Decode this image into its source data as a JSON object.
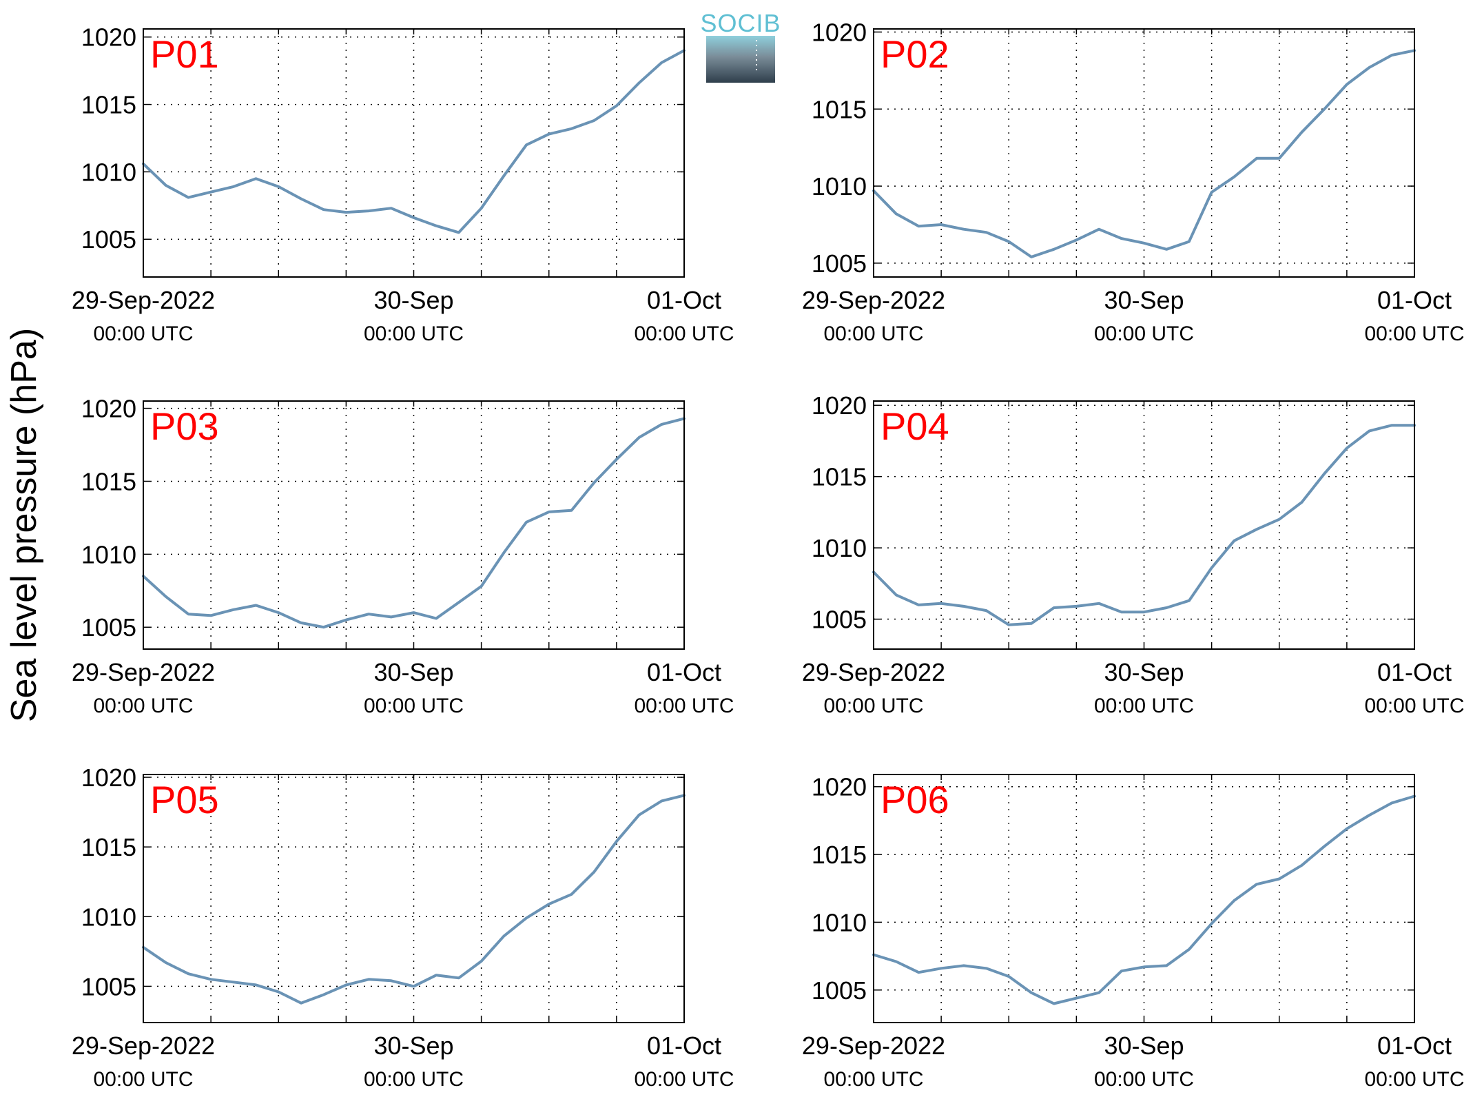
{
  "figure": {
    "ylabel": "Sea level pressure (hPa)",
    "logo_text": "SOCIB",
    "line_color": "#6a93b5",
    "station_label_color": "#ff0000"
  },
  "chart_data": [
    {
      "type": "line",
      "name": "P01",
      "ylim": [
        1002.2,
        1020.6
      ],
      "x": [
        0,
        2,
        4,
        6,
        8,
        10,
        12,
        14,
        16,
        18,
        20,
        22,
        24,
        26,
        28,
        30,
        32,
        34,
        36,
        38,
        40,
        42,
        44,
        46,
        48
      ],
      "y": [
        1010.6,
        1009.0,
        1008.1,
        1008.5,
        1008.9,
        1009.5,
        1008.9,
        1008.0,
        1007.2,
        1007.0,
        1007.1,
        1007.3,
        1006.6,
        1006.0,
        1005.5,
        1007.3,
        1009.7,
        1012.0,
        1012.8,
        1013.2,
        1013.8,
        1014.9,
        1016.6,
        1018.1,
        1019.0
      ]
    },
    {
      "type": "line",
      "name": "P02",
      "ylim": [
        1004.1,
        1020.2
      ],
      "x": [
        0,
        2,
        4,
        6,
        8,
        10,
        12,
        14,
        16,
        18,
        20,
        22,
        24,
        26,
        28,
        30,
        32,
        34,
        36,
        38,
        40,
        42,
        44,
        46,
        48
      ],
      "y": [
        1009.7,
        1008.2,
        1007.4,
        1007.5,
        1007.2,
        1007.0,
        1006.4,
        1005.4,
        1005.9,
        1006.5,
        1007.2,
        1006.6,
        1006.3,
        1005.9,
        1006.4,
        1009.6,
        1010.6,
        1011.8,
        1011.8,
        1013.5,
        1015.0,
        1016.6,
        1017.7,
        1018.5,
        1018.8
      ]
    },
    {
      "type": "line",
      "name": "P03",
      "ylim": [
        1003.5,
        1020.5
      ],
      "x": [
        0,
        2,
        4,
        6,
        8,
        10,
        12,
        14,
        16,
        18,
        20,
        22,
        24,
        26,
        28,
        30,
        32,
        34,
        36,
        38,
        40,
        42,
        44,
        46,
        48
      ],
      "y": [
        1008.5,
        1007.1,
        1005.9,
        1005.8,
        1006.2,
        1006.5,
        1006.0,
        1005.3,
        1005.0,
        1005.5,
        1005.9,
        1005.7,
        1006.0,
        1005.6,
        1006.7,
        1007.8,
        1010.1,
        1012.2,
        1012.9,
        1013.0,
        1014.9,
        1016.5,
        1018.0,
        1018.9,
        1019.3
      ]
    },
    {
      "type": "line",
      "name": "P04",
      "ylim": [
        1002.9,
        1020.3
      ],
      "x": [
        0,
        2,
        4,
        6,
        8,
        10,
        12,
        14,
        16,
        18,
        20,
        22,
        24,
        26,
        28,
        30,
        32,
        34,
        36,
        38,
        40,
        42,
        44,
        46,
        48
      ],
      "y": [
        1008.3,
        1006.7,
        1006.0,
        1006.1,
        1005.9,
        1005.6,
        1004.6,
        1004.7,
        1005.8,
        1005.9,
        1006.1,
        1005.5,
        1005.5,
        1005.8,
        1006.3,
        1008.6,
        1010.5,
        1011.3,
        1012.0,
        1013.2,
        1015.2,
        1017.0,
        1018.2,
        1018.6,
        1018.6
      ]
    },
    {
      "type": "line",
      "name": "P05",
      "ylim": [
        1002.4,
        1020.2
      ],
      "x": [
        0,
        2,
        4,
        6,
        8,
        10,
        12,
        14,
        16,
        18,
        20,
        22,
        24,
        26,
        28,
        30,
        32,
        34,
        36,
        38,
        40,
        42,
        44,
        46,
        48
      ],
      "y": [
        1007.8,
        1006.7,
        1005.9,
        1005.5,
        1005.3,
        1005.1,
        1004.6,
        1003.8,
        1004.4,
        1005.1,
        1005.5,
        1005.4,
        1005.0,
        1005.8,
        1005.6,
        1006.8,
        1008.6,
        1009.9,
        1010.9,
        1011.6,
        1013.2,
        1015.4,
        1017.3,
        1018.3,
        1018.7
      ]
    },
    {
      "type": "line",
      "name": "P06",
      "ylim": [
        1002.6,
        1020.9
      ],
      "x": [
        0,
        2,
        4,
        6,
        8,
        10,
        12,
        14,
        16,
        18,
        20,
        22,
        24,
        26,
        28,
        30,
        32,
        34,
        36,
        38,
        40,
        42,
        44,
        46,
        48
      ],
      "y": [
        1007.6,
        1007.1,
        1006.3,
        1006.6,
        1006.8,
        1006.6,
        1006.0,
        1004.8,
        1004.0,
        1004.4,
        1004.8,
        1006.4,
        1006.7,
        1006.8,
        1008.0,
        1009.9,
        1011.6,
        1012.8,
        1013.2,
        1014.2,
        1015.6,
        1016.9,
        1017.9,
        1018.8,
        1019.3
      ]
    }
  ],
  "axes": {
    "yticks": [
      "1005",
      "1010",
      "1015",
      "1020"
    ],
    "xticks": [
      {
        "date": "29-Sep-2022",
        "time": "00:00 UTC"
      },
      {
        "date": "30-Sep",
        "time": "00:00 UTC"
      },
      {
        "date": "01-Oct",
        "time": "00:00 UTC"
      }
    ]
  }
}
